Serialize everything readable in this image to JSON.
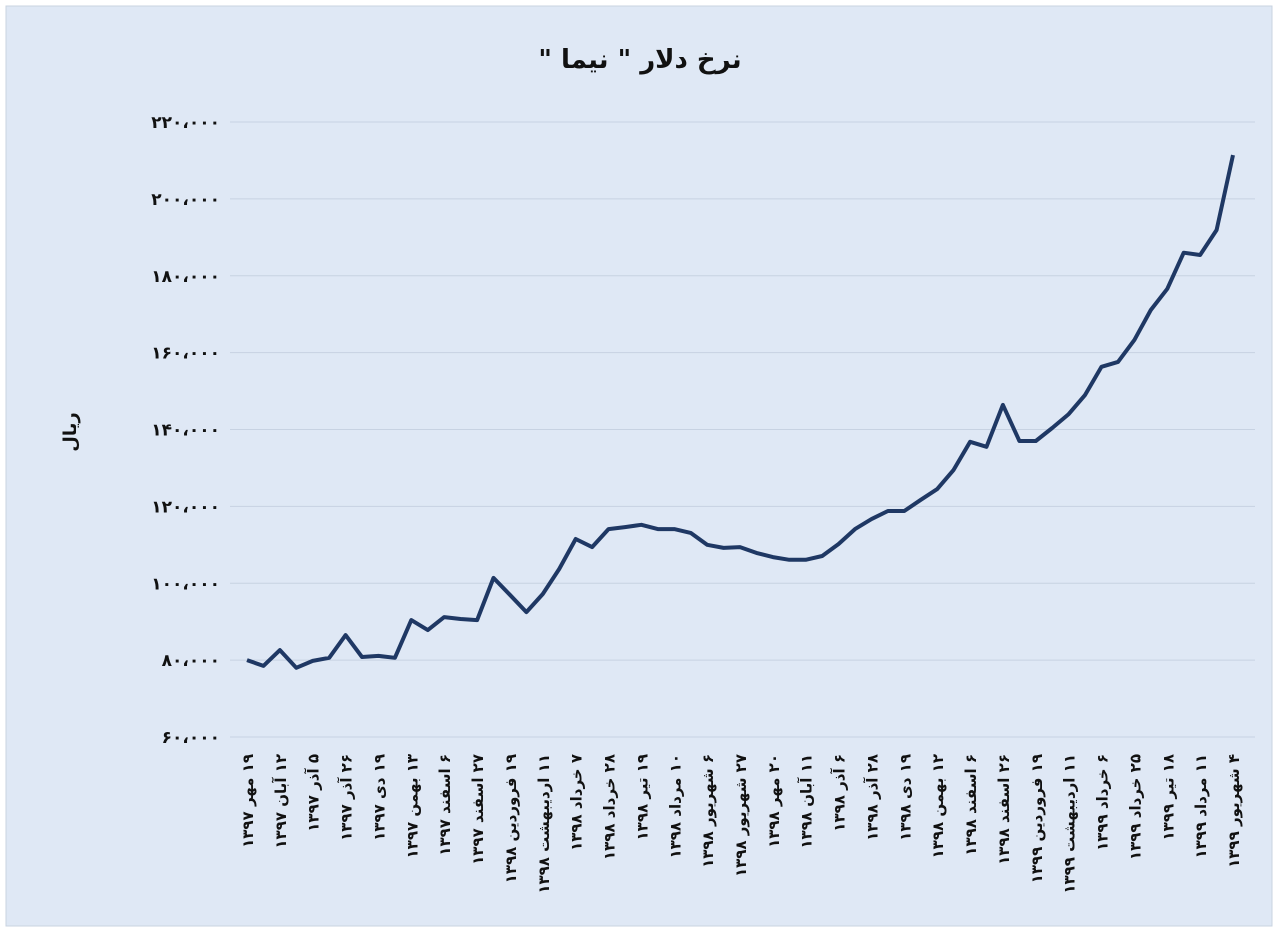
{
  "chart_data": {
    "type": "line",
    "title": "نرخ دلار \" نیما \"",
    "y_label": "ریال",
    "color": "#1f3864",
    "grid": true,
    "ylim": [
      60000,
      220000
    ],
    "yticks": [
      {
        "value": 60000,
        "label": "۶۰،۰۰۰"
      },
      {
        "value": 80000,
        "label": "۸۰،۰۰۰"
      },
      {
        "value": 100000,
        "label": "۱۰۰،۰۰۰"
      },
      {
        "value": 120000,
        "label": "۱۲۰،۰۰۰"
      },
      {
        "value": 140000,
        "label": "۱۴۰،۰۰۰"
      },
      {
        "value": 160000,
        "label": "۱۶۰،۰۰۰"
      },
      {
        "value": 180000,
        "label": "۱۸۰،۰۰۰"
      },
      {
        "value": 200000,
        "label": "۲۰۰،۰۰۰"
      },
      {
        "value": 220000,
        "label": "۲۲۰،۰۰۰"
      }
    ],
    "categories": [
      "۱۹ مهر ۱۳۹۷",
      null,
      "۱۲ آبان ۱۳۹۷",
      null,
      "۵ آذر ۱۳۹۷",
      null,
      "۲۶ آذر ۱۳۹۷",
      null,
      "۱۹ دی ۱۳۹۷",
      null,
      "۱۳ بهمن ۱۳۹۷",
      null,
      "۶ اسفند ۱۳۹۷",
      null,
      "۲۷ اسفند ۱۳۹۷",
      null,
      "۱۹ فروردین ۱۳۹۸",
      null,
      "۱۱ اردیبهشت ۱۳۹۸",
      null,
      "۷ خرداد ۱۳۹۸",
      null,
      "۲۸ خرداد ۱۳۹۸",
      null,
      "۱۹ تیر ۱۳۹۸",
      null,
      "۱۰ مرداد ۱۳۹۸",
      null,
      "۶ شهریور ۱۳۹۸",
      null,
      "۲۷ شهریور ۱۳۹۸",
      null,
      "۲۰ مهر ۱۳۹۸",
      null,
      "۱۱ آبان ۱۳۹۸",
      null,
      "۶ آذر ۱۳۹۸",
      null,
      "۲۸ آذر ۱۳۹۸",
      null,
      "۱۹ دی ۱۳۹۸",
      null,
      "۱۲ بهمن ۱۳۹۸",
      null,
      "۶ اسفند ۱۳۹۸",
      null,
      "۲۶ اسفند ۱۳۹۸",
      null,
      "۱۹ فروردین ۱۳۹۹",
      null,
      "۱۱ اردیبهشت ۱۳۹۹",
      null,
      "۶ خرداد ۱۳۹۹",
      null,
      "۲۵ خرداد ۱۳۹۹",
      null,
      "۱۸ تیر ۱۳۹۹",
      null,
      "۱۱ مرداد ۱۳۹۹",
      null,
      "۴ شهریور ۱۳۹۹"
    ],
    "values": [
      80000,
      78500,
      82600,
      78000,
      79800,
      80600,
      86500,
      80800,
      81100,
      80600,
      90400,
      87800,
      91200,
      90700,
      90400,
      101400,
      97000,
      92500,
      97200,
      103700,
      111500,
      109400,
      114100,
      114600,
      115200,
      114100,
      114100,
      113100,
      110000,
      109200,
      109400,
      107900,
      106800,
      106100,
      106100,
      107100,
      110200,
      114100,
      116700,
      118800,
      118800,
      121700,
      124500,
      129500,
      136800,
      135500,
      146400,
      137000,
      137000,
      140400,
      144000,
      149000,
      156300,
      157600,
      163300,
      171100,
      176600,
      186000,
      185400,
      191900,
      211400
    ]
  }
}
